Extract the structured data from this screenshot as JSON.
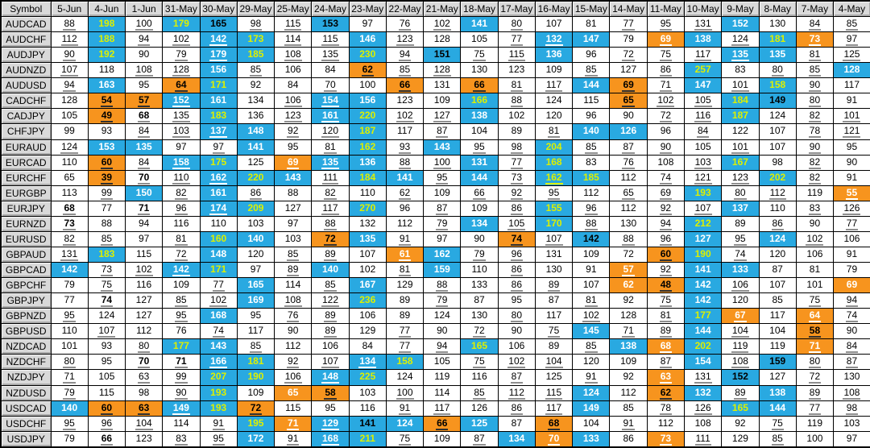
{
  "colors": {
    "blue_cell_bg": "#29a9e1",
    "orange_cell_bg": "#f7941e",
    "yellow_text": "#ddf000",
    "header_bg": "#d9d9d9",
    "grid_border": "#000000",
    "white_text": "#ffffff",
    "black_text": "#000000"
  },
  "cell_flag_legend": "flags after | : b=blue background, o=orange background, y=yellow text, w=white text, u=underlined value, B=bold value; no flag = plain black on white",
  "table": {
    "header": [
      "Symbol",
      "5-Jun",
      "4-Jun",
      "1-Jun",
      "31-May",
      "30-May",
      "29-May",
      "25-May",
      "24-May",
      "23-May",
      "22-May",
      "21-May",
      "18-May",
      "17-May",
      "16-May",
      "15-May",
      "14-May",
      "11-May",
      "10-May",
      "9-May",
      "8-May",
      "7-May",
      "4-May"
    ],
    "rows": [
      {
        "symbol": "AUDCAD",
        "cells": [
          "88|u",
          "198|by",
          "100|u",
          "179|by",
          "165|b",
          "98|u",
          "115|u",
          "153|b",
          "97|",
          "76|u",
          "102|u",
          "141|bw",
          "80|u",
          "107|",
          "81|",
          "77|u",
          "95|u",
          "131|u",
          "152|bw",
          "130|",
          "84|u",
          "85|u"
        ]
      },
      {
        "symbol": "AUDCHF",
        "cells": [
          "112|u",
          "188|by",
          "94|u",
          "102|u",
          "142|bwu",
          "173|by",
          "114|u",
          "115|u",
          "146|bw",
          "123|u",
          "128|",
          "105|",
          "77|u",
          "132|bwu",
          "147|bw",
          "79|",
          "69|owu",
          "138|bw",
          "124|u",
          "181|by",
          "73|owu",
          "97|u"
        ]
      },
      {
        "symbol": "AUDJPY",
        "cells": [
          "90|u",
          "192|by",
          "90|",
          "79|u",
          "179|bwu",
          "185|by",
          "108|u",
          "135|u",
          "230|by",
          "94|u",
          "151|b",
          "75|u",
          "115|u",
          "136|bw",
          "96|",
          "72|u",
          "75|u",
          "117|u",
          "135|bwu",
          "135|bw",
          "81|u",
          "125|u"
        ]
      },
      {
        "symbol": "AUDNZD",
        "cells": [
          "107|u",
          "118|",
          "108|u",
          "128|u",
          "156|bw",
          "85|u",
          "106|",
          "84|",
          "62|ou",
          "85|u",
          "128|u",
          "130|",
          "123|",
          "109|",
          "85|u",
          "127|",
          "86|u",
          "257|by",
          "83|",
          "80|u",
          "85|u",
          "128|bw"
        ]
      },
      {
        "symbol": "AUDUSD",
        "cells": [
          "94|u",
          "163|bw",
          "95|",
          "64|ou",
          "171|by",
          "92|",
          "84|",
          "70|u",
          "100|",
          "66|ou",
          "131|",
          "66|ou",
          "81|u",
          "117|u",
          "144|bw",
          "69|ou",
          "71|u",
          "147|bw",
          "101|u",
          "158|by",
          "90|u",
          "117|"
        ]
      },
      {
        "symbol": "CADCHF",
        "cells": [
          "128|",
          "54|ou",
          "57|ou",
          "152|bwu",
          "161|bw",
          "134|",
          "106|u",
          "154|bwu",
          "156|bw",
          "123|",
          "109|",
          "166|by",
          "88|u",
          "124|",
          "115|",
          "65|ou",
          "102|u",
          "105|u",
          "184|by",
          "149|b",
          "80|u",
          "91|"
        ]
      },
      {
        "symbol": "CADJPY",
        "cells": [
          "105|",
          "49|ou",
          "68|uB",
          "135|u",
          "183|by",
          "136|",
          "123|u",
          "161|bwu",
          "220|by",
          "102|u",
          "127|u",
          "138|bw",
          "102|",
          "120|",
          "96|",
          "90|",
          "72|u",
          "116|u",
          "187|by",
          "124|",
          "82|u",
          "101|u"
        ]
      },
      {
        "symbol": "CHFJPY",
        "cells": [
          "99|",
          "93|",
          "84|u",
          "103|u",
          "137|bwu",
          "148|bw",
          "92|u",
          "120|u",
          "187|by",
          "117|",
          "87|u",
          "104|",
          "89|",
          "81|u",
          "140|bw",
          "126|bw",
          "96|",
          "84|u",
          "122|",
          "107|",
          "78|u",
          "121|u"
        ]
      },
      {
        "symbol": "EURAUD",
        "cells": [
          "124|u",
          "153|bw",
          "135|bw",
          "97|",
          "97|u",
          "141|bw",
          "95|",
          "81|u",
          "162|by",
          "93|u",
          "143|bw",
          "95|u",
          "98|u",
          "204|by",
          "85|u",
          "87|u",
          "90|u",
          "105|",
          "101|u",
          "107|",
          "90|u",
          "95|"
        ]
      },
      {
        "symbol": "EURCAD",
        "cells": [
          "110|",
          "60|ou",
          "84|u",
          "158|bwu",
          "175|by",
          "125|",
          "69|owu",
          "135|bwu",
          "136|bw",
          "88|u",
          "100|u",
          "131|bw",
          "77|u",
          "168|by",
          "83|",
          "76|u",
          "108|",
          "103|u",
          "167|by",
          "98|",
          "82|u",
          "90|"
        ]
      },
      {
        "symbol": "EURCHF",
        "cells": [
          "65|",
          "39|ou",
          "70|uB",
          "110|u",
          "162|bwu",
          "220|by",
          "143|bw",
          "111|u",
          "184|by",
          "141|bw",
          "95|u",
          "144|bw",
          "73|u",
          "162|byu",
          "185|by",
          "112|",
          "74|u",
          "121|u",
          "123|u",
          "202|by",
          "82|u",
          "91|"
        ]
      },
      {
        "symbol": "EURGBP",
        "cells": [
          "113|",
          "99|u",
          "150|bw",
          "82|u",
          "161|bw",
          "86|u",
          "88|",
          "82|u",
          "110|",
          "62|u",
          "109|",
          "66|u",
          "92|u",
          "95|u",
          "112|",
          "65|u",
          "69|u",
          "193|by",
          "80|u",
          "112|u",
          "119|",
          "55|owu"
        ]
      },
      {
        "symbol": "EURJPY",
        "cells": [
          "68|uB",
          "77|",
          "71|uB",
          "96|u",
          "174|bwu",
          "209|by",
          "127|",
          "117|u",
          "270|by",
          "96|",
          "87|u",
          "109|",
          "86|u",
          "155|by",
          "96|u",
          "112|",
          "92|u",
          "107|u",
          "137|bw",
          "110|",
          "83|u",
          "126|u"
        ]
      },
      {
        "symbol": "EURNZD",
        "cells": [
          "73|uB",
          "88|",
          "94|",
          "116|",
          "110|",
          "103|",
          "97|",
          "88|u",
          "132|",
          "112|",
          "79|u",
          "134|bw",
          "105|u",
          "170|by",
          "88|u",
          "130|",
          "94|u",
          "212|by",
          "89|",
          "86|u",
          "90|",
          "77|u"
        ]
      },
      {
        "symbol": "EURUSD",
        "cells": [
          "82|u",
          "85|u",
          "97|",
          "81|u",
          "160|by",
          "140|bw",
          "103|",
          "72|ou",
          "135|bw",
          "91|u",
          "97|",
          "90|",
          "74|ou",
          "107|u",
          "142|b",
          "88|u",
          "96|u",
          "127|bw",
          "95|u",
          "124|bw",
          "102|u",
          "106|"
        ]
      },
      {
        "symbol": "GBPAUD",
        "cells": [
          "131|u",
          "183|by",
          "115|",
          "72|u",
          "148|bw",
          "120|",
          "85|u",
          "89|u",
          "107|",
          "61|owu",
          "162|bw",
          "79|u",
          "96|u",
          "131|",
          "109|",
          "72|",
          "60|ou",
          "190|by",
          "74|u",
          "120|",
          "106|",
          "91|"
        ]
      },
      {
        "symbol": "GBPCAD",
        "cells": [
          "142|bw",
          "73|u",
          "102|u",
          "142|bwu",
          "171|by",
          "97|",
          "89|u",
          "140|bw",
          "102|",
          "81|u",
          "159|bw",
          "110|",
          "86|u",
          "130|",
          "91|",
          "57|owu",
          "92|u",
          "141|bw",
          "133|bw",
          "87|",
          "81|",
          "79|"
        ]
      },
      {
        "symbol": "GBPCHF",
        "cells": [
          "79|",
          "75|u",
          "116|",
          "109|",
          "77|u",
          "165|bw",
          "114|",
          "85|u",
          "167|bw",
          "129|",
          "88|u",
          "133|",
          "86|u",
          "89|u",
          "107|",
          "62|ow",
          "48|ou",
          "142|bw",
          "106|u",
          "107|",
          "101|",
          "69|ow"
        ]
      },
      {
        "symbol": "GBPJPY",
        "cells": [
          "77|",
          "74|uB",
          "127|",
          "85|u",
          "102|u",
          "169|bw",
          "108|u",
          "122|u",
          "236|by",
          "89|",
          "79|u",
          "87|",
          "95|",
          "87|",
          "81|u",
          "92|",
          "75|u",
          "142|bw",
          "120|",
          "85|",
          "75|u",
          "94|u"
        ]
      },
      {
        "symbol": "GBPNZD",
        "cells": [
          "95|u",
          "124|",
          "127|",
          "95|u",
          "168|bw",
          "95|",
          "76|u",
          "89|u",
          "106|",
          "89|",
          "124|",
          "130|",
          "80|u",
          "117|",
          "102|u",
          "128|",
          "81|u",
          "177|by",
          "67|owu",
          "117|",
          "64|owu",
          "74|u"
        ]
      },
      {
        "symbol": "GBPUSD",
        "cells": [
          "110|",
          "107|u",
          "112|",
          "76|",
          "74|u",
          "117|",
          "90|",
          "89|u",
          "129|",
          "77|u",
          "90|",
          "72|u",
          "90|",
          "75|u",
          "145|bw",
          "71|u",
          "89|u",
          "144|bw",
          "104|u",
          "104|",
          "58|ou",
          "90|"
        ]
      },
      {
        "symbol": "NZDCAD",
        "cells": [
          "101|",
          "93|",
          "80|u",
          "177|by",
          "143|bw",
          "85|u",
          "112|",
          "106|",
          "84|",
          "77|u",
          "94|u",
          "165|by",
          "106|",
          "89|",
          "85|u",
          "138|bw",
          "68|owu",
          "202|by",
          "119|u",
          "119|",
          "71|owu",
          "84|u"
        ]
      },
      {
        "symbol": "NZDCHF",
        "cells": [
          "80|u",
          "95|",
          "70|uB",
          "71|uB",
          "166|bwu",
          "181|by",
          "92|u",
          "107|u",
          "134|bwu",
          "158|by",
          "105|",
          "75|u",
          "102|u",
          "104|u",
          "120|",
          "109|",
          "87|u",
          "154|bw",
          "108|u",
          "159|b",
          "80|u",
          "87|u"
        ]
      },
      {
        "symbol": "NZDJPY",
        "cells": [
          "71|u",
          "105|",
          "63|u",
          "99|u",
          "207|by",
          "190|by",
          "106|u",
          "148|bwu",
          "225|by",
          "124|",
          "119|",
          "116|",
          "87|u",
          "125|",
          "91|u",
          "92|",
          "63|owu",
          "131|u",
          "152|b",
          "127|",
          "72|u",
          "130|"
        ]
      },
      {
        "symbol": "NZDUSD",
        "cells": [
          "79|u",
          "115|",
          "98|",
          "90|u",
          "193|by",
          "109|",
          "65|ow",
          "58|ou",
          "103|",
          "100|u",
          "114|",
          "85|u",
          "112|u",
          "115|u",
          "124|bw",
          "112|",
          "62|ou",
          "132|bw",
          "89|u",
          "138|bw",
          "89|u",
          "108|u"
        ]
      },
      {
        "symbol": "USDCAD",
        "cells": [
          "140|bw",
          "60|ou",
          "63|ou",
          "149|bwu",
          "193|by",
          "72|ou",
          "115|",
          "95|",
          "116|",
          "91|u",
          "117|u",
          "126|",
          "86|u",
          "117|u",
          "149|bw",
          "85|",
          "78|u",
          "126|u",
          "165|by",
          "144|bw",
          "77|u",
          "98|u"
        ]
      },
      {
        "symbol": "USDCHF",
        "cells": [
          "95|u",
          "96|u",
          "104|u",
          "114|",
          "91|u",
          "195|by",
          "71|owu",
          "129|bwu",
          "141|b",
          "124|bw",
          "66|ou",
          "125|bw",
          "87|",
          "68|ou",
          "104|",
          "91|u",
          "112|",
          "108|",
          "92|",
          "75|u",
          "119|",
          "103|"
        ]
      },
      {
        "symbol": "USDJPY",
        "cells": [
          "79|",
          "66|uB",
          "123|",
          "83|u",
          "95|u",
          "172|bw",
          "91|u",
          "168|bwu",
          "211|by",
          "75|u",
          "109|",
          "87|u",
          "134|bw",
          "70|owu",
          "133|bw",
          "86|",
          "73|owu",
          "111|u",
          "129|",
          "85|u",
          "100|",
          "97|"
        ]
      }
    ]
  }
}
